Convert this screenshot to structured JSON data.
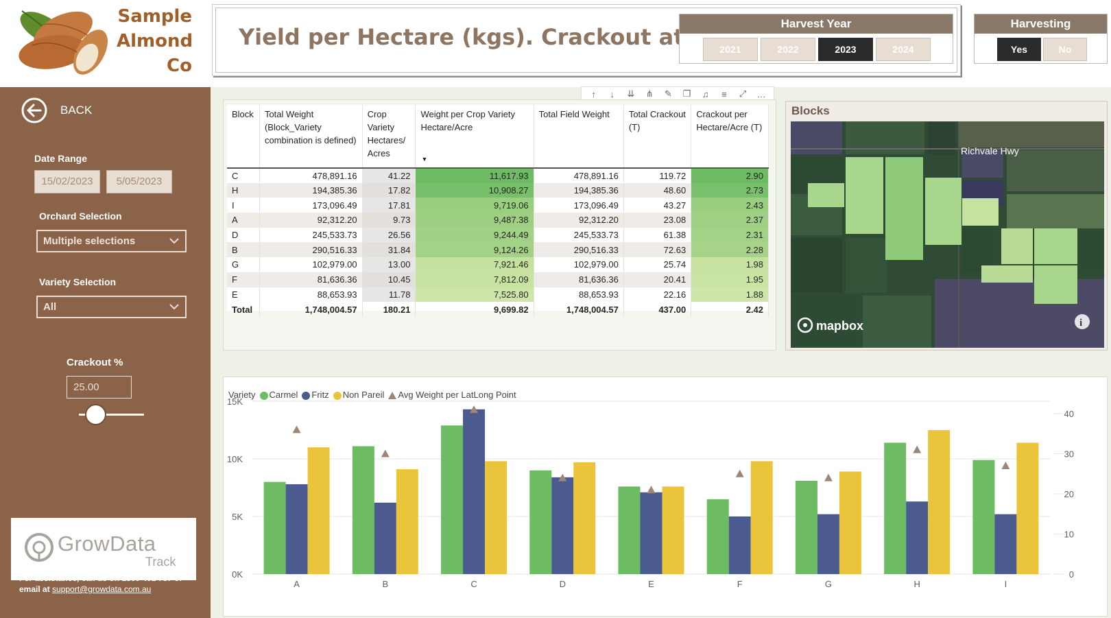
{
  "company": {
    "line1": "Sample",
    "line2": "Almond",
    "line3": "Co"
  },
  "title": "Yield per Hectare (kgs). Crackout at 25%",
  "harvest_year": {
    "header": "Harvest Year",
    "options": [
      "2021",
      "2022",
      "2023",
      "2024"
    ],
    "selected": "2023"
  },
  "harvesting": {
    "header": "Harvesting",
    "options": [
      "Yes",
      "No"
    ],
    "selected": "Yes"
  },
  "sidebar": {
    "back_label": "BACK",
    "date_range_label": "Date Range",
    "date_start": "15/02/2023",
    "date_end": "5/05/2023",
    "orchard_label": "Orchard Selection",
    "orchard_value": "Multiple selections",
    "variety_label": "Variety Selection",
    "variety_value": "All",
    "crackout_label": "Crackout %",
    "crackout_value": "25.00",
    "crackout_slider_fraction": 0.25,
    "logo_text": "GrowData",
    "logo_sub": "Track",
    "assist_text": "For assistance, call us on 1800 491 737 or email  at ",
    "assist_email": "support@growdata.com.au"
  },
  "table": {
    "headers": [
      "Block",
      "Total Weight (Block_Variety combination is defined)",
      "Crop Variety Hectares/ Acres",
      "Weight per Crop Variety Hectare/Acre",
      "Total Field Weight",
      "Total Crackout (T)",
      "Crackout per Hectare/Acre (T)"
    ],
    "rows": [
      [
        "C",
        "478,891.16",
        "41.22",
        "11,617.93",
        "478,891.16",
        "119.72",
        "2.90"
      ],
      [
        "H",
        "194,385.36",
        "17.82",
        "10,908.27",
        "194,385.36",
        "48.60",
        "2.73"
      ],
      [
        "I",
        "173,096.49",
        "17.81",
        "9,719.06",
        "173,096.49",
        "43.27",
        "2.43"
      ],
      [
        "A",
        "92,312.20",
        "9.73",
        "9,487.38",
        "92,312.20",
        "23.08",
        "2.37"
      ],
      [
        "D",
        "245,533.73",
        "26.56",
        "9,244.49",
        "245,533.73",
        "61.38",
        "2.31"
      ],
      [
        "B",
        "290,516.33",
        "31.84",
        "9,124.26",
        "290,516.33",
        "72.63",
        "2.28"
      ],
      [
        "G",
        "102,979.00",
        "13.00",
        "7,921.46",
        "102,979.00",
        "25.74",
        "1.98"
      ],
      [
        "F",
        "81,636.36",
        "10.45",
        "7,812.09",
        "81,636.36",
        "20.41",
        "1.95"
      ],
      [
        "E",
        "88,653.93",
        "11.78",
        "7,525.80",
        "88,653.93",
        "22.16",
        "1.88"
      ]
    ],
    "total": [
      "Total",
      "1,748,004.57",
      "180.21",
      "9,699.82",
      "1,748,004.57",
      "437.00",
      "2.42"
    ],
    "weight_shades": [
      "#6dbb63",
      "#77bf6b",
      "#9bcf80",
      "#9dd082",
      "#a1d184",
      "#a3d286",
      "#c5e1a0",
      "#c8e2a2",
      "#cfe6aa"
    ],
    "crackout_shades": [
      "#6dbb63",
      "#78c06b",
      "#9bcf80",
      "#9fd083",
      "#a2d285",
      "#a6d388",
      "#c6e1a0",
      "#c9e3a3",
      "#cfe6aa"
    ]
  },
  "map": {
    "title": "Blocks",
    "road_label": "Richvale Hwy",
    "attribution": "mapbox"
  },
  "chart_data": {
    "type": "bar",
    "categories": [
      "A",
      "B",
      "C",
      "D",
      "E",
      "F",
      "G",
      "H",
      "I"
    ],
    "legend_title": "Variety",
    "series": [
      {
        "name": "Carmel",
        "color": "#6dbb63",
        "values": [
          8000,
          11100,
          12900,
          9000,
          7600,
          6500,
          8100,
          11400,
          9900
        ]
      },
      {
        "name": "Fritz",
        "color": "#4b5a8f",
        "values": [
          7800,
          6200,
          14300,
          8400,
          7100,
          5000,
          5200,
          6300,
          5200
        ]
      },
      {
        "name": "Non Pareil",
        "color": "#eac53c",
        "values": [
          11000,
          9100,
          9800,
          9700,
          7600,
          9800,
          8900,
          12500,
          11400
        ]
      }
    ],
    "line_series": {
      "name": "Avg Weight per LatLong Point",
      "color": "#9c8776",
      "values": [
        36,
        30,
        41,
        24,
        21,
        25,
        24,
        31,
        27
      ]
    },
    "y_left": {
      "ticks": [
        "0K",
        "5K",
        "10K",
        "15K"
      ],
      "min": 0,
      "max": 15000
    },
    "y_right": {
      "ticks": [
        "0",
        "10",
        "20",
        "30",
        "40"
      ],
      "min": 0,
      "max": 40
    }
  }
}
